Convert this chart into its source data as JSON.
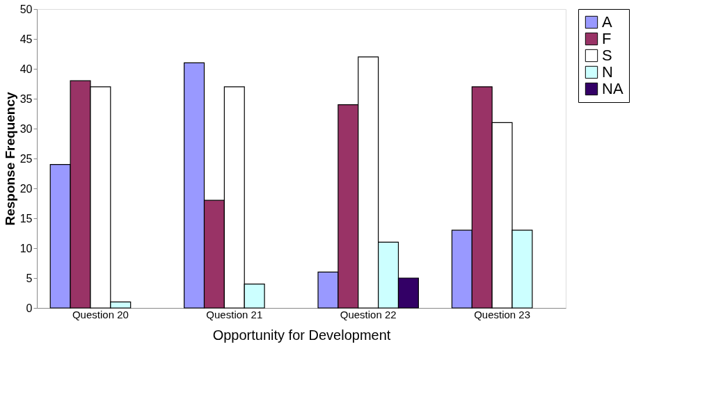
{
  "chart_data": {
    "type": "bar",
    "xlabel": "Opportunity for Development",
    "ylabel": "Response Frequency",
    "categories": [
      "Question 20",
      "Question 21",
      "Question 22",
      "Question 23"
    ],
    "series": [
      {
        "name": "A",
        "color": "#9999ff",
        "values": [
          24,
          41,
          6,
          13
        ]
      },
      {
        "name": "F",
        "color": "#993366",
        "values": [
          38,
          18,
          34,
          37
        ]
      },
      {
        "name": "S",
        "color": "#ffffff",
        "values": [
          37,
          37,
          42,
          31
        ]
      },
      {
        "name": "N",
        "color": "#ccffff",
        "values": [
          1,
          4,
          11,
          13
        ]
      },
      {
        "name": "NA",
        "color": "#330066",
        "values": [
          null,
          null,
          5,
          null
        ]
      }
    ],
    "ylim": [
      0,
      50
    ],
    "yticks": [
      0,
      5,
      10,
      15,
      20,
      25,
      30,
      35,
      40,
      45,
      50
    ],
    "grid": false,
    "legend": "right"
  }
}
